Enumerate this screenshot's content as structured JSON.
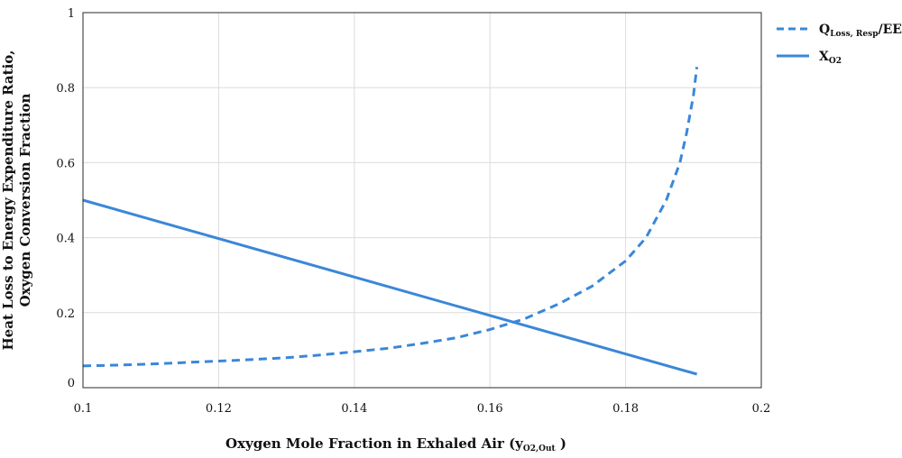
{
  "chart_data": {
    "type": "line",
    "xlabel": "Oxygen Mole Fraction in Exhaled Air (y",
    "xlabel_sub": "O2,Out",
    "xlabel_end": " )",
    "ylabel_line1": "Heat Loss to Energy Expenditure Ratio,",
    "ylabel_line2": "Oxygen Conversion Fraction",
    "xlim": [
      0.1,
      0.2
    ],
    "ylim": [
      0,
      1
    ],
    "xticks": [
      "0.1",
      "0.12",
      "0.14",
      "0.16",
      "0.18",
      "0.2"
    ],
    "yticks": [
      "0",
      "0.2",
      "0.4",
      "0.6",
      "0.8",
      "1"
    ],
    "grid": true,
    "legend_position": "top-right-outside",
    "series": [
      {
        "name_main": "Q",
        "name_sub": "Loss, Resp",
        "name_end": "/EE",
        "style": "dashed",
        "color": "#3a87d8",
        "x": [
          0.1,
          0.105,
          0.11,
          0.115,
          0.12,
          0.125,
          0.13,
          0.135,
          0.14,
          0.145,
          0.15,
          0.155,
          0.16,
          0.165,
          0.17,
          0.175,
          0.18,
          0.183,
          0.186,
          0.188,
          0.189,
          0.19,
          0.1905
        ],
        "y": [
          0.058,
          0.06,
          0.063,
          0.067,
          0.071,
          0.075,
          0.08,
          0.087,
          0.096,
          0.105,
          0.118,
          0.133,
          0.155,
          0.183,
          0.222,
          0.27,
          0.338,
          0.4,
          0.5,
          0.6,
          0.68,
          0.78,
          0.855
        ]
      },
      {
        "name_main": "X",
        "name_sub": "O2",
        "name_end": "",
        "style": "solid",
        "color": "#3a87d8",
        "x": [
          0.1,
          0.1905
        ],
        "y": [
          0.5,
          0.036
        ]
      }
    ]
  }
}
